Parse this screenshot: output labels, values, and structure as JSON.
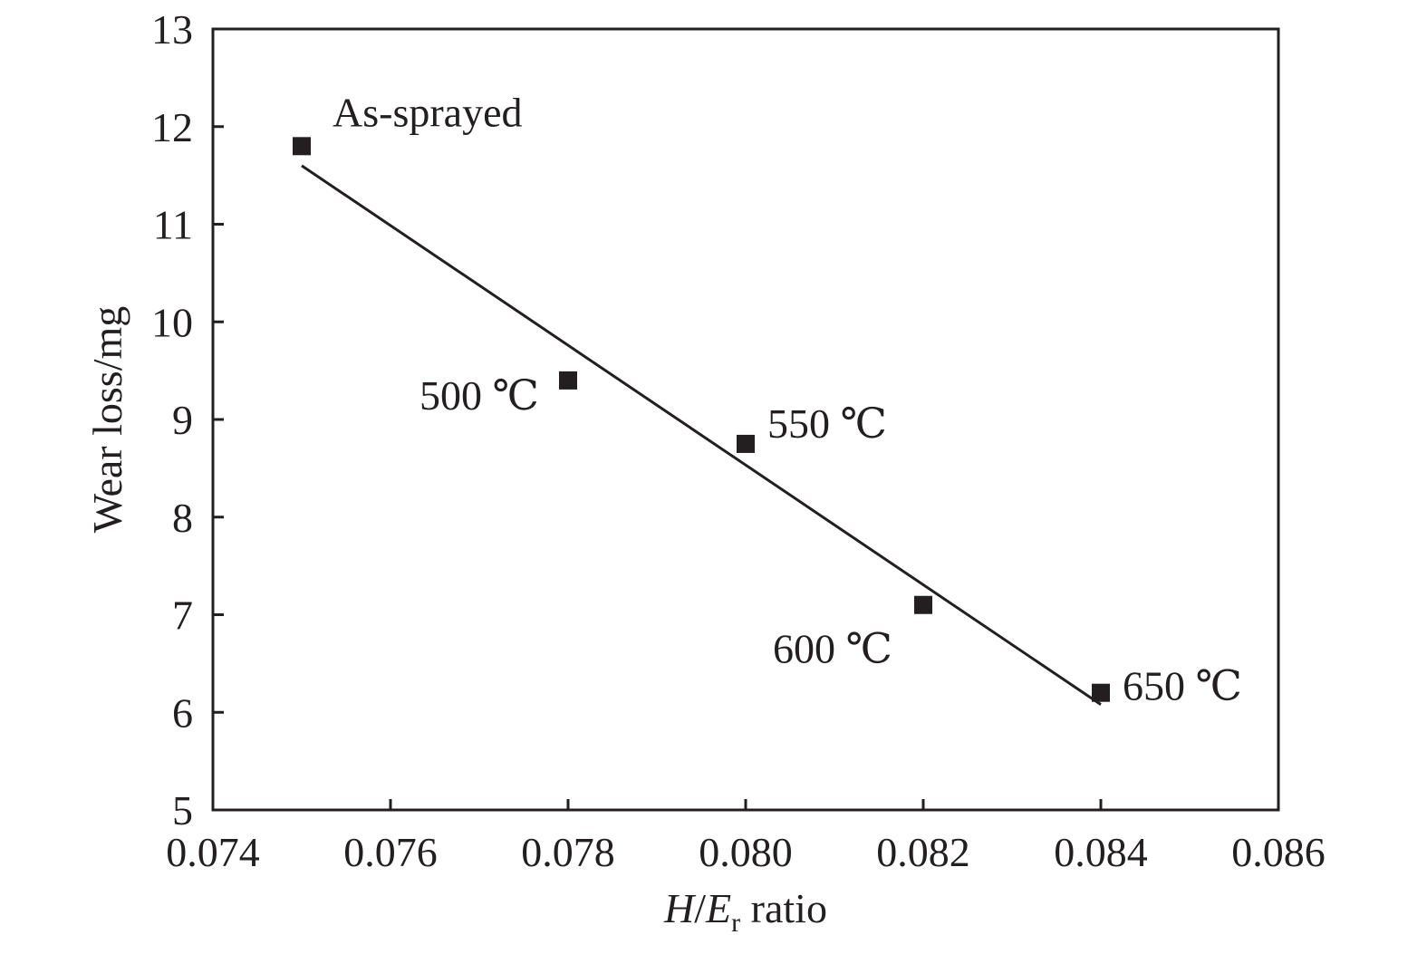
{
  "chart_data": {
    "type": "scatter",
    "title": "",
    "xlabel": {
      "italic_H": "H",
      "slash": "/",
      "italic_E": "E",
      "subscript": "r",
      "suffix": " ratio"
    },
    "ylabel": "Wear loss/mg",
    "xlim": [
      0.074,
      0.086
    ],
    "ylim": [
      5,
      13
    ],
    "x_ticks": [
      0.074,
      0.076,
      0.078,
      0.08,
      0.082,
      0.084,
      0.086
    ],
    "x_tick_labels": [
      "0.074",
      "0.076",
      "0.078",
      "0.080",
      "0.082",
      "0.084",
      "0.086"
    ],
    "y_ticks": [
      5,
      6,
      7,
      8,
      9,
      10,
      11,
      12,
      13
    ],
    "y_tick_labels": [
      "5",
      "6",
      "7",
      "8",
      "9",
      "10",
      "11",
      "12",
      "13"
    ],
    "grid": false,
    "legend": "none",
    "marker": "square",
    "color": "#231f20",
    "points": [
      {
        "x": 0.075,
        "y": 11.8,
        "label": "As-sprayed"
      },
      {
        "x": 0.078,
        "y": 9.4,
        "label": "500 ℃"
      },
      {
        "x": 0.08,
        "y": 8.75,
        "label": "550 ℃"
      },
      {
        "x": 0.082,
        "y": 7.1,
        "label": "600 ℃"
      },
      {
        "x": 0.084,
        "y": 6.2,
        "label": "650 ℃"
      }
    ],
    "fit_line": {
      "x": [
        0.075,
        0.084
      ],
      "y": [
        11.6,
        6.08
      ]
    }
  }
}
